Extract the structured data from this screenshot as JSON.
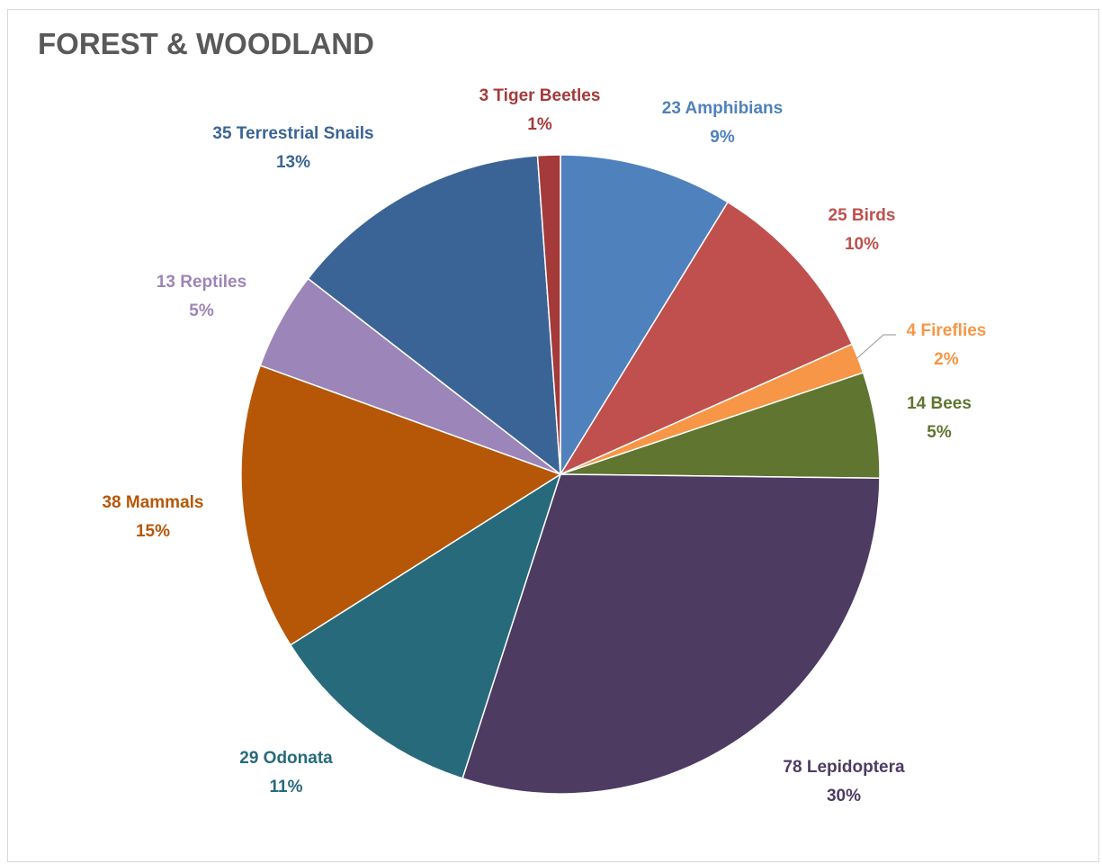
{
  "chart_data": {
    "type": "pie",
    "title": "FOREST & WOODLAND",
    "start_angle_deg": 0,
    "direction": "clockwise",
    "slices": [
      {
        "name": "Amphibians",
        "count": 23,
        "label": "23 Amphibians",
        "percent_label": "9%",
        "color": "#4f81bd",
        "label_color": "#4f81bd"
      },
      {
        "name": "Birds",
        "count": 25,
        "label": "25 Birds",
        "percent_label": "10%",
        "color": "#c0504d",
        "label_color": "#c0504d"
      },
      {
        "name": "Fireflies",
        "count": 4,
        "label": "4 Fireflies",
        "percent_label": "2%",
        "color": "#f79646",
        "label_color": "#f79646"
      },
      {
        "name": "Bees",
        "count": 14,
        "label": "14 Bees",
        "percent_label": "5%",
        "color": "#5f7530",
        "label_color": "#5f7530"
      },
      {
        "name": "Lepidoptera",
        "count": 78,
        "label": "78 Lepidoptera",
        "percent_label": "30%",
        "color": "#4d3b62",
        "label_color": "#4d3b62"
      },
      {
        "name": "Odonata",
        "count": 29,
        "label": "29 Odonata",
        "percent_label": "11%",
        "color": "#276a7c",
        "label_color": "#276a7c"
      },
      {
        "name": "Mammals",
        "count": 38,
        "label": "38 Mammals",
        "percent_label": "15%",
        "color": "#b65708",
        "label_color": "#b65708"
      },
      {
        "name": "Reptiles",
        "count": 13,
        "label": "13 Reptiles",
        "percent_label": "5%",
        "color": "#9c85b8",
        "label_color": "#9c85b8"
      },
      {
        "name": "Terrestrial Snails",
        "count": 35,
        "label": "35 Terrestrial Snails",
        "percent_label": "13%",
        "color": "#3b6496",
        "label_color": "#3b6496"
      },
      {
        "name": "Tiger Beetles",
        "count": 3,
        "label": "3 Tiger Beetles",
        "percent_label": "1%",
        "color": "#a53a3a",
        "label_color": "#a53a3a"
      }
    ]
  }
}
